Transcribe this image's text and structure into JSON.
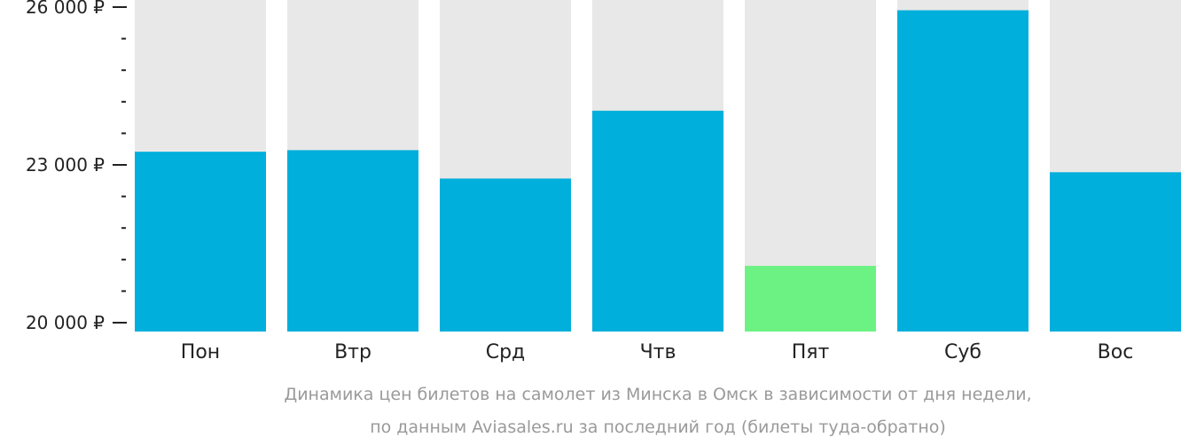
{
  "chart_data": {
    "type": "bar",
    "categories": [
      "Пон",
      "Втр",
      "Срд",
      "Чтв",
      "Пят",
      "Суб",
      "Вос"
    ],
    "values": [
      23250,
      23280,
      22740,
      24030,
      21080,
      25940,
      22860
    ],
    "highlight_index": 4,
    "ylim": [
      20000,
      26000
    ],
    "yticks": [
      {
        "value": 20000,
        "label": "20 000 ₽"
      },
      {
        "value": 23000,
        "label": "23 000 ₽"
      },
      {
        "value": 26000,
        "label": "26 000 ₽"
      }
    ],
    "minor_step": 600,
    "caption": [
      "Динамика цен билетов на самолет из Минска в Омск в зависимости от дня недели,",
      "по данным Aviasales.ru за последний год (билеты туда-обратно)"
    ],
    "colors": {
      "bar": "#00AFDB",
      "highlight": "#6CF283",
      "background_column": "#E8E8E8",
      "axis": "#222222",
      "caption": "#9A9A9A"
    }
  }
}
